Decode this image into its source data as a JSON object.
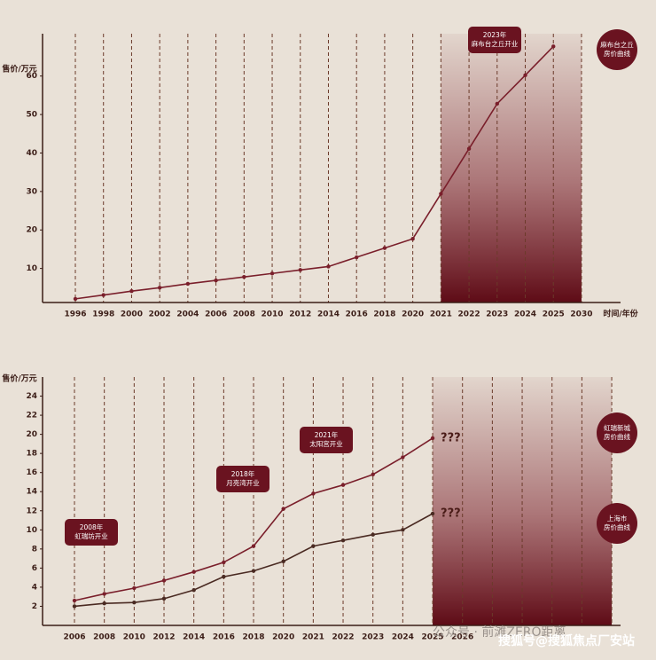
{
  "chart_data": [
    {
      "type": "line",
      "y_label": "售价/万元",
      "x_label": "时间/年份",
      "categories": [
        "1996",
        "1998",
        "2000",
        "2002",
        "2004",
        "2006",
        "2008",
        "2010",
        "2012",
        "2014",
        "2016",
        "2018",
        "2020",
        "2021",
        "2022",
        "2023",
        "2024",
        "2025",
        "2030"
      ],
      "series": [
        {
          "name": [
            "麻布台之丘",
            "房价曲线"
          ],
          "color": "#7a1f2b",
          "values": [
            2.1,
            3.1,
            4.1,
            5.0,
            6.0,
            6.9,
            7.8,
            8.7,
            9.6,
            10.5,
            12.9,
            15.3,
            17.7,
            29.4,
            41.1,
            52.8,
            60.2,
            67.7,
            null
          ]
        }
      ],
      "ylim": [
        0,
        71
      ],
      "yticks": [
        10,
        20,
        30,
        40,
        50,
        60
      ],
      "shade_start": "2021",
      "annotations": [
        {
          "text": [
            "2023年",
            "麻布台之丘开业"
          ]
        }
      ]
    },
    {
      "type": "line",
      "y_label": "售价/万元",
      "categories": [
        "2006",
        "2008",
        "2010",
        "2012",
        "2014",
        "2016",
        "2018",
        "2020",
        "2021",
        "2022",
        "2023",
        "2024",
        "2025",
        "2026",
        null,
        null,
        null,
        null,
        null
      ],
      "series": [
        {
          "name": [
            "虹瑞新城",
            "房价曲线"
          ],
          "color": "#7a1f2b",
          "end_label": "???",
          "values": [
            2.6,
            3.3,
            3.9,
            4.7,
            5.6,
            6.6,
            8.3,
            12.2,
            13.8,
            14.7,
            15.8,
            17.6,
            19.6,
            null,
            null,
            null,
            null,
            null,
            null
          ]
        },
        {
          "name": [
            "上海市",
            "房价曲线"
          ],
          "color": "#4a2a22",
          "end_label": "???",
          "values": [
            2.0,
            2.3,
            2.4,
            2.8,
            3.7,
            5.1,
            5.7,
            6.7,
            8.3,
            8.9,
            9.5,
            10.0,
            11.7,
            null,
            null,
            null,
            null,
            null,
            null
          ]
        }
      ],
      "ylim": [
        0,
        26
      ],
      "yticks": [
        2,
        4,
        6,
        8,
        10,
        12,
        14,
        16,
        18,
        20,
        22,
        24
      ],
      "shade_start": "2025",
      "annotations": [
        {
          "text": [
            "2008年",
            "虹瑞坊开业"
          ]
        },
        {
          "text": [
            "2018年",
            "月亮湾开业"
          ]
        },
        {
          "text": [
            "2021年",
            "太阳宫开业"
          ]
        }
      ]
    }
  ],
  "watermark": [
    "公众号 · 前滩ZERO距离",
    "搜狐号@搜狐焦点厂安站"
  ]
}
